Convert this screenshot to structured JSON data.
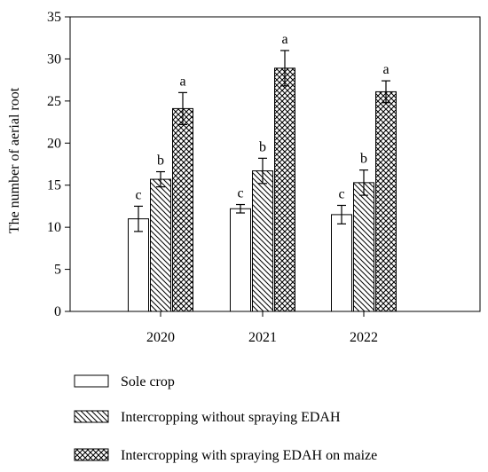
{
  "chart_data": {
    "type": "bar",
    "title": "",
    "xlabel": "",
    "ylabel": "The number of aerial root",
    "ylim": [
      0,
      35
    ],
    "yticks": [
      0,
      5,
      10,
      15,
      20,
      25,
      30,
      35
    ],
    "categories": [
      "2020",
      "2021",
      "2022"
    ],
    "series": [
      {
        "name": "Sole crop",
        "pattern": "empty",
        "values": [
          11.0,
          12.2,
          11.5
        ],
        "errors": [
          1.5,
          0.5,
          1.1
        ],
        "letters": [
          "c",
          "c",
          "c"
        ]
      },
      {
        "name": "Intercropping without spraying EDAH",
        "pattern": "diagonal",
        "values": [
          15.7,
          16.7,
          15.3
        ],
        "errors": [
          0.9,
          1.5,
          1.5
        ],
        "letters": [
          "b",
          "b",
          "b"
        ]
      },
      {
        "name": "Intercropping with spraying EDAH on maize",
        "pattern": "crosshatch",
        "values": [
          24.1,
          28.9,
          26.1
        ],
        "errors": [
          1.9,
          2.1,
          1.3
        ],
        "letters": [
          "a",
          "a",
          "a"
        ]
      }
    ],
    "grid": false,
    "legend_position": "bottom"
  },
  "colors": {
    "axis": "#000000",
    "bar_fill": "#ffffff",
    "stroke": "#000000"
  }
}
